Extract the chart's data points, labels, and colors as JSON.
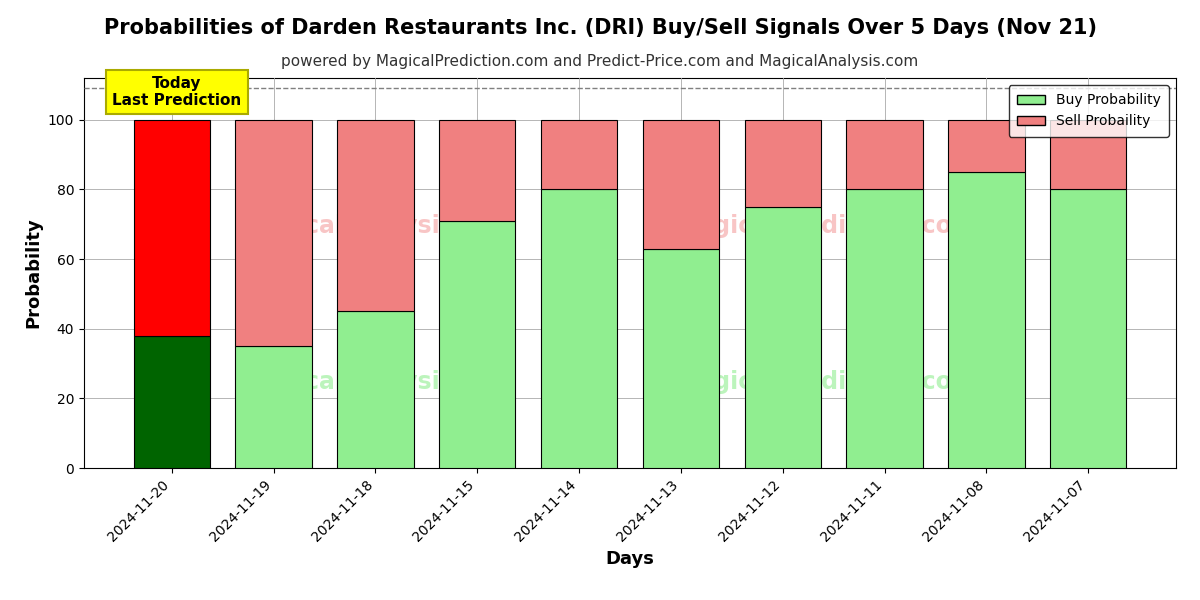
{
  "title": "Probabilities of Darden Restaurants Inc. (DRI) Buy/Sell Signals Over 5 Days (Nov 21)",
  "subtitle": "powered by MagicalPrediction.com and Predict-Price.com and MagicalAnalysis.com",
  "xlabel": "Days",
  "ylabel": "Probability",
  "dates": [
    "2024-11-20",
    "2024-11-19",
    "2024-11-18",
    "2024-11-15",
    "2024-11-14",
    "2024-11-13",
    "2024-11-12",
    "2024-11-11",
    "2024-11-08",
    "2024-11-07"
  ],
  "buy_values": [
    38,
    35,
    45,
    71,
    80,
    63,
    75,
    80,
    85,
    80
  ],
  "sell_values": [
    62,
    65,
    55,
    29,
    20,
    37,
    25,
    20,
    15,
    20
  ],
  "today_buy_color": "#006400",
  "today_sell_color": "#FF0000",
  "other_buy_color": "#90EE90",
  "other_sell_color": "#F08080",
  "today_label_bg": "#FFFF00",
  "today_label_text": "Today\nLast Prediction",
  "bar_edge_color": "#000000",
  "ylim": [
    0,
    112
  ],
  "yticks": [
    0,
    20,
    40,
    60,
    80,
    100
  ],
  "dashed_line_y": 109,
  "legend_buy_label": "Buy Probability",
  "legend_sell_label": "Sell Probaility",
  "background_color": "#FFFFFF",
  "grid_color": "#AAAAAA",
  "title_fontsize": 15,
  "subtitle_fontsize": 11,
  "axis_label_fontsize": 13,
  "tick_fontsize": 10
}
